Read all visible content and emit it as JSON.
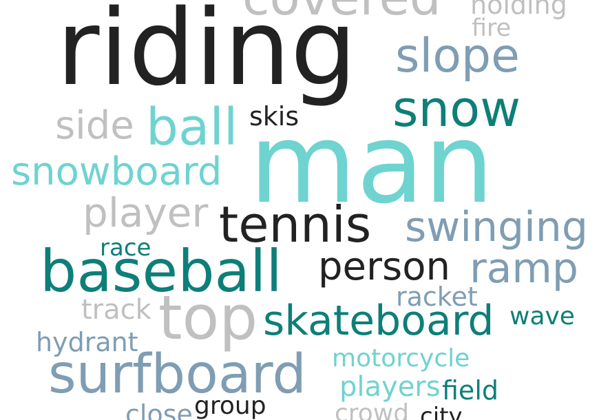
{
  "colors": {
    "black": "#222222",
    "gray": "#c0c0c0",
    "slate": "#7f9db3",
    "teal": "#0d7f78",
    "aqua": "#6fd3d0"
  },
  "words": [
    {
      "text": "covered",
      "color": "gray"
    },
    {
      "text": "holding",
      "color": "gray"
    },
    {
      "text": "fire",
      "color": "gray"
    },
    {
      "text": "riding",
      "color": "black"
    },
    {
      "text": "slope",
      "color": "slate"
    },
    {
      "text": "snow",
      "color": "teal"
    },
    {
      "text": "side",
      "color": "gray"
    },
    {
      "text": "ball",
      "color": "aqua"
    },
    {
      "text": "skis",
      "color": "black"
    },
    {
      "text": "man",
      "color": "aqua"
    },
    {
      "text": "snowboard",
      "color": "aqua"
    },
    {
      "text": "player",
      "color": "gray"
    },
    {
      "text": "tennis",
      "color": "black"
    },
    {
      "text": "swinging",
      "color": "slate"
    },
    {
      "text": "race",
      "color": "teal"
    },
    {
      "text": "baseball",
      "color": "teal"
    },
    {
      "text": "person",
      "color": "black"
    },
    {
      "text": "ramp",
      "color": "slate"
    },
    {
      "text": "racket",
      "color": "slate"
    },
    {
      "text": "track",
      "color": "gray"
    },
    {
      "text": "top",
      "color": "gray"
    },
    {
      "text": "skateboard",
      "color": "teal"
    },
    {
      "text": "wave",
      "color": "teal"
    },
    {
      "text": "hydrant",
      "color": "slate"
    },
    {
      "text": "motorcycle",
      "color": "aqua"
    },
    {
      "text": "surfboard",
      "color": "slate"
    },
    {
      "text": "players",
      "color": "aqua"
    },
    {
      "text": "field",
      "color": "teal"
    },
    {
      "text": "group",
      "color": "black"
    },
    {
      "text": "close",
      "color": "slate"
    },
    {
      "text": "crowd",
      "color": "gray"
    },
    {
      "text": "city",
      "color": "black"
    }
  ]
}
